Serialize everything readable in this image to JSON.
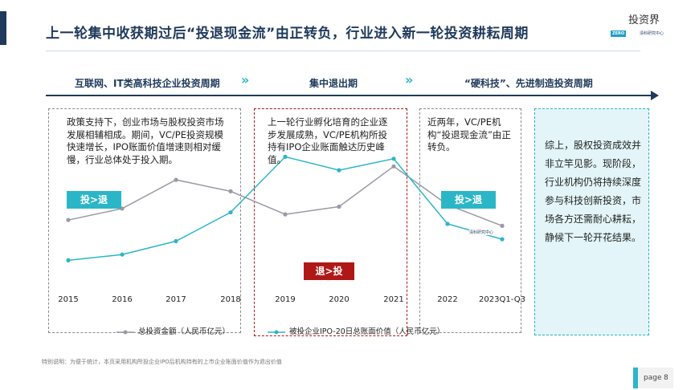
{
  "title": "上一轮集中收获期过后“投退现金流”由正转负，行业进入新一轮投资耕耘周期",
  "logo": {
    "top_text": "投资界",
    "badge": "ZERO",
    "sub": "清科研究中心"
  },
  "phases": [
    {
      "label": "互联网、IT类高科技企业投资周期"
    },
    {
      "label": "集中退出期"
    },
    {
      "label": "“硬科技”、先进制造投资周期"
    }
  ],
  "chevron": "»",
  "boxes": {
    "desc1": "政策支持下，创业市场与股权投资市场发展相辅相成。期间，VC/PE投资规模快速增长，IPO账面价值增速则相对缓慢，行业总体处于投入期。",
    "desc2": "上一轮行业孵化培育的企业逐步发展成熟，VC/PE机构所投持有IPO企业账面触达历史峰值。",
    "desc3": "近两年，VC/PE机构“投退现金流”由正转负。",
    "summary": "综上，股权投资成效并非立竿见影。现阶段，行业机构仍将持续深度参与科技创新投资，市场各方还需耐心耕耘，静候下一轮开花结果。"
  },
  "badges": {
    "invest_over_exit": "投>退",
    "exit_over_invest": "退>投"
  },
  "colors": {
    "navy": "#1f3a5a",
    "teal": "#2bb6c8",
    "red": "#b01818",
    "gray_line": "#9a9aa6"
  },
  "chart_data": {
    "type": "line",
    "categories": [
      "2015",
      "2016",
      "2017",
      "2018",
      "2019",
      "2020",
      "2021",
      "2022",
      "2023Q1-Q3"
    ],
    "series": [
      {
        "name": "总投资金额（人民币亿元）",
        "color": "#9a9aa6",
        "values": [
          58,
          64,
          79,
          73,
          61,
          65,
          86,
          66,
          55
        ]
      },
      {
        "name": "被投企业IPO-20日总账面价值（人民币亿元）",
        "color": "#2bb6c8",
        "values": [
          37,
          40,
          47,
          62,
          91,
          84,
          90,
          56,
          48
        ]
      }
    ],
    "ylim": [
      20,
      110
    ],
    "grid": false
  },
  "footnote": "特别说明：为便于统计，本页采用机构所投企业IPO后机构持有的上市企业账面价值作为退出价值",
  "page": {
    "label": "page",
    "number": "8"
  }
}
